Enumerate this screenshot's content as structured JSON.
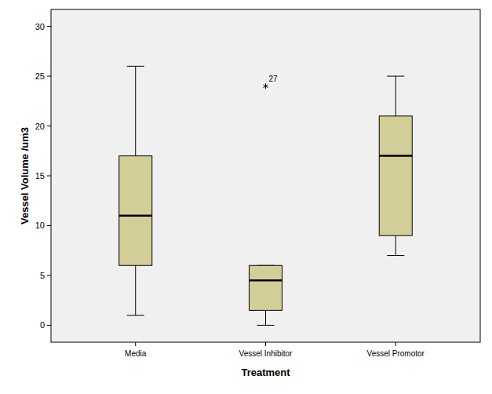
{
  "chart_data": {
    "type": "box",
    "x_label": "Treatment",
    "y_label": "Vessel Volume /um3",
    "categories": [
      "Media",
      "Vessel Inhibitor",
      "Vessel Promotor"
    ],
    "boxes": [
      {
        "min": 1,
        "q1": 6,
        "median": 11,
        "q3": 17,
        "max": 26,
        "outliers": []
      },
      {
        "min": 0,
        "q1": 1.5,
        "median": 4.5,
        "q3": 6,
        "max": 6,
        "outliers": [
          {
            "value": 24,
            "case": "27"
          }
        ]
      },
      {
        "min": 7,
        "q1": 9,
        "median": 17,
        "q3": 21,
        "max": 25,
        "outliers": []
      }
    ],
    "color": "#d3ce97",
    "ylim": [
      -1.7,
      31.7
    ],
    "yticks": [
      0,
      5,
      10,
      15,
      20,
      25,
      30
    ],
    "grid": false
  }
}
